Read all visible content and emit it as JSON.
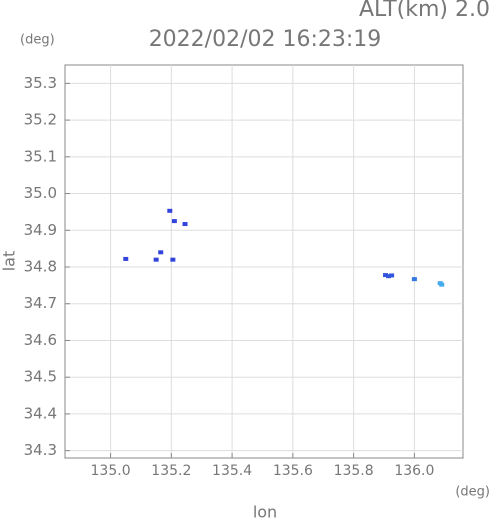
{
  "chart_data": {
    "type": "scatter",
    "title": "2022/02/02 16:23:19",
    "annotation": "ALT(km) 2.0",
    "x_unit": "(deg)",
    "y_unit": "(deg)",
    "xlabel": "lon",
    "ylabel": "lat",
    "x": [
      135.05,
      135.165,
      135.15,
      135.205,
      135.195,
      135.21,
      135.245,
      135.905,
      135.915,
      135.925,
      136.0,
      136.085,
      136.09
    ],
    "y": [
      34.822,
      34.84,
      34.82,
      34.82,
      34.953,
      34.925,
      34.917,
      34.778,
      34.775,
      34.777,
      34.767,
      34.756,
      34.752
    ],
    "colors": [
      "#3344dd",
      "#3344dd",
      "#3344dd",
      "#3344dd",
      "#3344dd",
      "#3344dd",
      "#3344dd",
      "#3355dd",
      "#3355dd",
      "#3355dd",
      "#3377e0",
      "#44aaee",
      "#44aaee"
    ],
    "xlim": [
      134.85,
      136.16
    ],
    "ylim": [
      34.28,
      35.35
    ],
    "xticks": [
      {
        "value": 135.0,
        "label": "135.0"
      },
      135.2,
      135.4,
      135.6,
      135.8,
      {
        "value": 136.0,
        "label": "136.0"
      }
    ],
    "yticks": [
      34.3,
      34.4,
      34.5,
      34.6,
      34.7,
      34.8,
      34.9,
      {
        "value": 35.0,
        "label": "35.0"
      },
      35.1,
      35.2,
      35.3
    ],
    "grid": true
  }
}
